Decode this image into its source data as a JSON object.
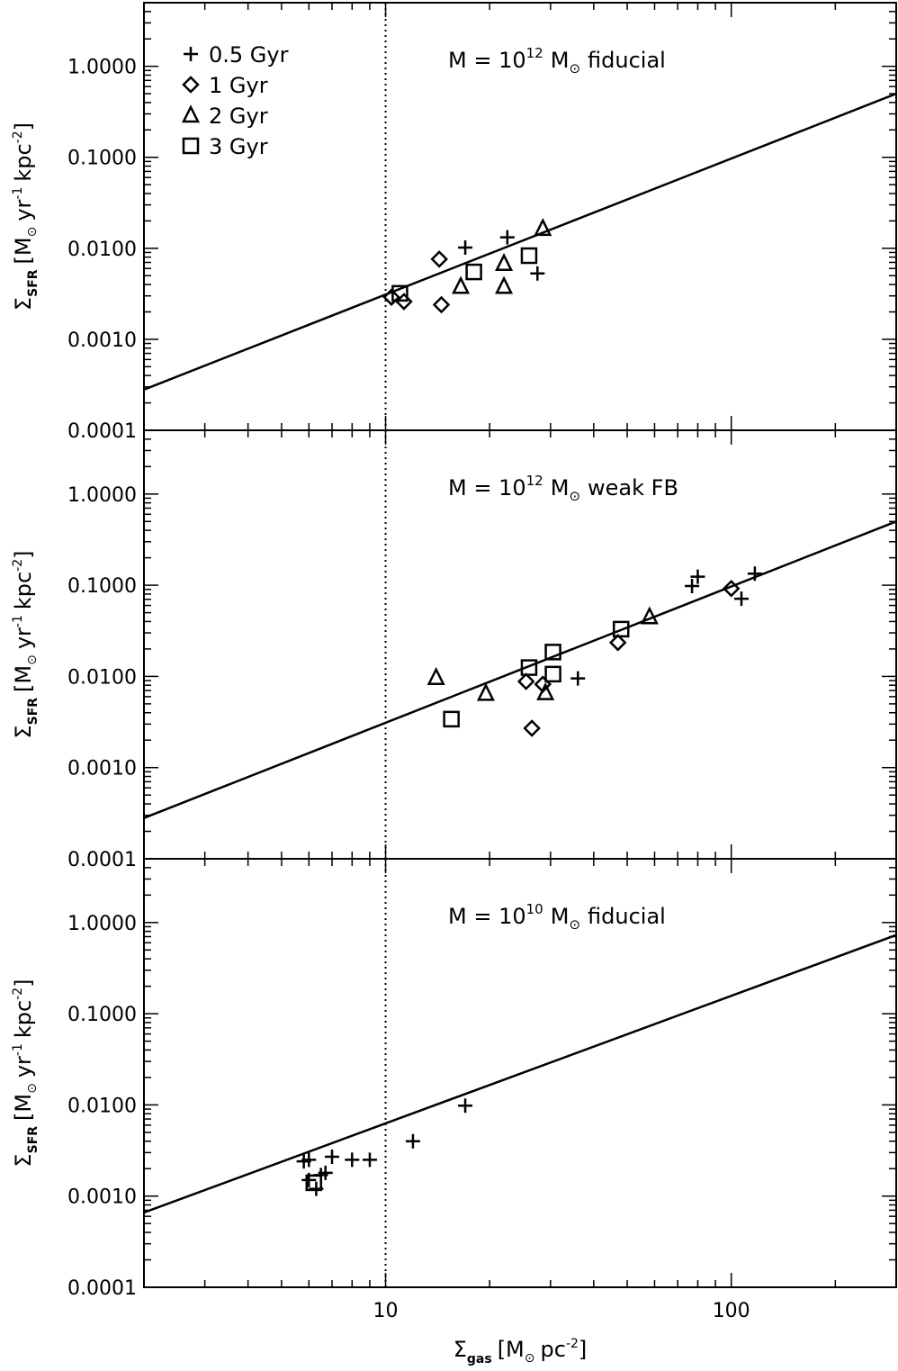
{
  "chart_data": {
    "type": "scatter",
    "xlabel": {
      "main": "Σ",
      "sub": "gas",
      "rest": "[M",
      "sun": "⊙",
      "tail": "pc",
      "sup": "-2",
      "close": "]"
    },
    "ylabel": {
      "main": "Σ",
      "sub": "SFR",
      "rest": "[M",
      "sun": "⊙",
      "mid": "yr",
      "sup1": "-1",
      "mid2": "kpc",
      "sup2": "-2",
      "close": "]"
    },
    "xscale": "log",
    "yscale": "log",
    "xlim": [
      2,
      300
    ],
    "ylim": [
      0.0001,
      5
    ],
    "x_ticks": [
      {
        "v": 10,
        "label": "10"
      },
      {
        "v": 100,
        "label": "100"
      }
    ],
    "y_ticks": [
      {
        "v": 0.0001,
        "label": "0.0001"
      },
      {
        "v": 0.001,
        "label": "0.0010"
      },
      {
        "v": 0.01,
        "label": "0.0100"
      },
      {
        "v": 0.1,
        "label": "0.1000"
      },
      {
        "v": 1,
        "label": "1.0000"
      }
    ],
    "vline_x": 10,
    "legend": {
      "placement": "top-left",
      "entries": [
        {
          "marker": "plus",
          "label": "0.5 Gyr"
        },
        {
          "marker": "diamond",
          "label": "1 Gyr"
        },
        {
          "marker": "triangle",
          "label": "2 Gyr"
        },
        {
          "marker": "square",
          "label": "3 Gyr"
        }
      ]
    },
    "panels": [
      {
        "title": {
          "pre": "M = 10",
          "sup": "12",
          "post": "M",
          "sun": "⊙",
          "tail": "fiducial"
        },
        "fit_line": {
          "x": [
            2,
            300
          ],
          "y": [
            0.00028,
            0.5
          ]
        },
        "series": [
          {
            "marker": "plus",
            "points": [
              [
                17,
                0.0102
              ],
              [
                22.5,
                0.0132
              ],
              [
                27.5,
                0.0053
              ]
            ]
          },
          {
            "marker": "diamond",
            "points": [
              [
                10.4,
                0.0029
              ],
              [
                11.3,
                0.0026
              ],
              [
                14.3,
                0.0076
              ],
              [
                14.5,
                0.0024
              ]
            ]
          },
          {
            "marker": "triangle",
            "points": [
              [
                16.5,
                0.0038
              ],
              [
                22,
                0.0068
              ],
              [
                22,
                0.0038
              ],
              [
                28.5,
                0.0165
              ]
            ]
          },
          {
            "marker": "square",
            "points": [
              [
                11,
                0.0032
              ],
              [
                18,
                0.0055
              ],
              [
                26,
                0.0083
              ]
            ]
          }
        ]
      },
      {
        "title": {
          "pre": "M = 10",
          "sup": "12",
          "post": "M",
          "sun": "⊙",
          "tail": "weak FB"
        },
        "fit_line": {
          "x": [
            2,
            300
          ],
          "y": [
            0.00028,
            0.5
          ]
        },
        "series": [
          {
            "marker": "plus",
            "points": [
              [
                36,
                0.0095
              ],
              [
                77,
                0.098
              ],
              [
                80,
                0.124
              ],
              [
                107,
                0.071
              ],
              [
                117,
                0.134
              ]
            ]
          },
          {
            "marker": "diamond",
            "points": [
              [
                25.5,
                0.0088
              ],
              [
                26.5,
                0.0027
              ],
              [
                28.5,
                0.0082
              ],
              [
                47,
                0.0235
              ],
              [
                100,
                0.092
              ]
            ]
          },
          {
            "marker": "triangle",
            "points": [
              [
                14,
                0.0097
              ],
              [
                19.5,
                0.0065
              ],
              [
                29,
                0.0066
              ],
              [
                58,
                0.045
              ]
            ]
          },
          {
            "marker": "square",
            "points": [
              [
                15.5,
                0.0034
              ],
              [
                26,
                0.0125
              ],
              [
                30.5,
                0.0185
              ],
              [
                30.5,
                0.0106
              ],
              [
                48,
                0.033
              ]
            ]
          }
        ]
      },
      {
        "title": {
          "pre": "M = 10",
          "sup": "10",
          "post": "M",
          "sun": "⊙",
          "tail": "fiducial"
        },
        "fit_line": {
          "x": [
            2,
            300
          ],
          "y": [
            0.00066,
            0.73
          ]
        },
        "series": [
          {
            "marker": "plus",
            "points": [
              [
                5.8,
                0.0024
              ],
              [
                6.0,
                0.0025
              ],
              [
                6.0,
                0.0015
              ],
              [
                6.3,
                0.0012
              ],
              [
                6.5,
                0.0017
              ],
              [
                6.7,
                0.0018
              ],
              [
                7.0,
                0.0027
              ],
              [
                8.0,
                0.0025
              ],
              [
                9.0,
                0.0025
              ],
              [
                12.0,
                0.004
              ],
              [
                17.0,
                0.0098
              ]
            ]
          },
          {
            "marker": "square",
            "points": [
              [
                6.2,
                0.0014
              ]
            ]
          }
        ]
      }
    ]
  }
}
